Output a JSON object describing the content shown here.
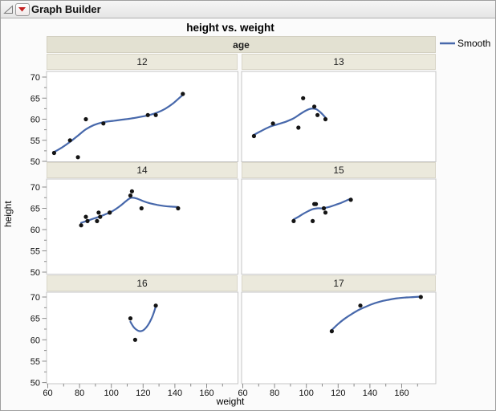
{
  "window": {
    "title": "Graph Builder"
  },
  "chart": {
    "title": "height vs. weight",
    "facet_band_label": "age",
    "x_axis_label": "weight",
    "y_axis_label": "height",
    "legend": {
      "label": "Smooth"
    },
    "y_ticks": [
      70,
      65,
      60,
      55,
      50
    ],
    "x_ticks": [
      60,
      80,
      100,
      120,
      140,
      160
    ],
    "colors": {
      "smooth_line": "#4768ab",
      "point": "#141414",
      "band_bg": "#e3e1d2",
      "facet_cell_bg": "#ebe9dc",
      "panel_border": "#c6c6c6",
      "tick": "#8a8a8a",
      "menu_arrow_red": "#c42222"
    }
  },
  "chart_data": {
    "type": "scatter",
    "title": "height vs. weight",
    "xlabel": "weight",
    "ylabel": "height",
    "facet_variable": "age",
    "xlim": [
      59,
      181
    ],
    "ylim": [
      49.5,
      71.5
    ],
    "legend_entries": [
      "Smooth"
    ],
    "facets": [
      {
        "age": "12",
        "points": [
          [
            64,
            52
          ],
          [
            74,
            55
          ],
          [
            79,
            51
          ],
          [
            84,
            60
          ],
          [
            95,
            59
          ],
          [
            123,
            61
          ],
          [
            128,
            61
          ],
          [
            145,
            66
          ]
        ],
        "smooth": [
          [
            64,
            52.2
          ],
          [
            69,
            53.3
          ],
          [
            74,
            54.6
          ],
          [
            79,
            56.1
          ],
          [
            84,
            57.6
          ],
          [
            89,
            58.6
          ],
          [
            95,
            59.3
          ],
          [
            101,
            59.6
          ],
          [
            107,
            59.9
          ],
          [
            113,
            60.2
          ],
          [
            119,
            60.6
          ],
          [
            124,
            61.0
          ],
          [
            129,
            61.6
          ],
          [
            134,
            62.5
          ],
          [
            139,
            63.8
          ],
          [
            145,
            65.8
          ]
        ]
      },
      {
        "age": "13",
        "points": [
          [
            67,
            56
          ],
          [
            79,
            59
          ],
          [
            95,
            58
          ],
          [
            98,
            65
          ],
          [
            105,
            63
          ],
          [
            107,
            61
          ],
          [
            112,
            60
          ]
        ],
        "smooth": [
          [
            67,
            56.3
          ],
          [
            72,
            57.3
          ],
          [
            77,
            58.2
          ],
          [
            82,
            58.8
          ],
          [
            87,
            59.4
          ],
          [
            92,
            60.2
          ],
          [
            96,
            61.2
          ],
          [
            100,
            62.1
          ],
          [
            103,
            62.5
          ],
          [
            106,
            62.4
          ],
          [
            109,
            61.6
          ],
          [
            112,
            60.4
          ]
        ]
      },
      {
        "age": "14",
        "points": [
          [
            81,
            61
          ],
          [
            84,
            63
          ],
          [
            85,
            62
          ],
          [
            91,
            62
          ],
          [
            92,
            64
          ],
          [
            93,
            63
          ],
          [
            99,
            64
          ],
          [
            99,
            64
          ],
          [
            112,
            68
          ],
          [
            113,
            69
          ],
          [
            119,
            65
          ],
          [
            142,
            65
          ]
        ],
        "smooth": [
          [
            81,
            61.6
          ],
          [
            85,
            62.1
          ],
          [
            89,
            62.6
          ],
          [
            93,
            63.1
          ],
          [
            97,
            63.7
          ],
          [
            101,
            64.4
          ],
          [
            105,
            65.4
          ],
          [
            108,
            66.3
          ],
          [
            111,
            67.2
          ],
          [
            113,
            67.5
          ],
          [
            116,
            67.3
          ],
          [
            120,
            66.7
          ],
          [
            124,
            66.2
          ],
          [
            129,
            65.8
          ],
          [
            134,
            65.5
          ],
          [
            138,
            65.4
          ],
          [
            142,
            65.3
          ]
        ]
      },
      {
        "age": "15",
        "points": [
          [
            92,
            62
          ],
          [
            104,
            62
          ],
          [
            105,
            66
          ],
          [
            106,
            66
          ],
          [
            111,
            65
          ],
          [
            112,
            64
          ],
          [
            128,
            67
          ]
        ],
        "smooth": [
          [
            92,
            62.4
          ],
          [
            95,
            63.0
          ],
          [
            98,
            63.7
          ],
          [
            101,
            64.3
          ],
          [
            104,
            64.8
          ],
          [
            107,
            65.0
          ],
          [
            110,
            65.0
          ],
          [
            113,
            65.2
          ],
          [
            116,
            65.5
          ],
          [
            119,
            65.9
          ],
          [
            122,
            66.3
          ],
          [
            125,
            66.8
          ],
          [
            128,
            67.3
          ]
        ]
      },
      {
        "age": "16",
        "points": [
          [
            112,
            65
          ],
          [
            115,
            60
          ],
          [
            128,
            68
          ]
        ],
        "smooth": [
          [
            112,
            64.2
          ],
          [
            114,
            63.0
          ],
          [
            116,
            62.3
          ],
          [
            118,
            62.0
          ],
          [
            120,
            62.2
          ],
          [
            122,
            62.9
          ],
          [
            124,
            64.0
          ],
          [
            126,
            65.6
          ],
          [
            128,
            67.8
          ]
        ]
      },
      {
        "age": "17",
        "points": [
          [
            116,
            62
          ],
          [
            134,
            68
          ],
          [
            172,
            70
          ]
        ],
        "smooth": [
          [
            116,
            62.3
          ],
          [
            120,
            63.7
          ],
          [
            124,
            64.9
          ],
          [
            128,
            65.9
          ],
          [
            132,
            66.8
          ],
          [
            136,
            67.5
          ],
          [
            141,
            68.3
          ],
          [
            146,
            68.9
          ],
          [
            151,
            69.3
          ],
          [
            157,
            69.7
          ],
          [
            163,
            69.9
          ],
          [
            168,
            70.0
          ],
          [
            172,
            70.1
          ]
        ]
      }
    ]
  }
}
